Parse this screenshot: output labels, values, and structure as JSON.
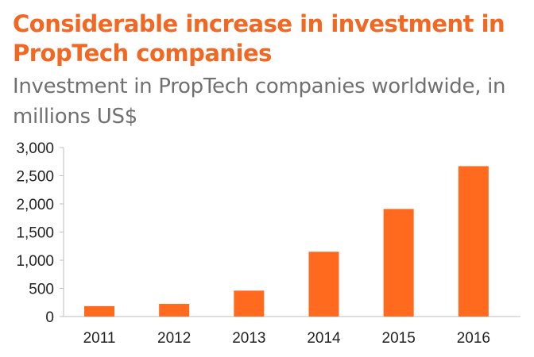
{
  "header": {
    "title": "Considerable increase in investment in PropTech companies",
    "subtitle": "Investment in PropTech companies worldwide, in millions US$"
  },
  "colors": {
    "accent": "#f26722",
    "bar": "#ff6a1f",
    "subtitle": "#707070",
    "axis": "#bfbfbf"
  },
  "chart_data": {
    "type": "bar",
    "title": "Considerable increase in investment in PropTech companies",
    "subtitle": "Investment in PropTech companies worldwide, in millions US$",
    "xlabel": "",
    "ylabel": "",
    "categories": [
      "2011",
      "2012",
      "2013",
      "2014",
      "2015",
      "2016"
    ],
    "values": [
      185,
      225,
      460,
      1150,
      1910,
      2670
    ],
    "ylim": [
      0,
      3000
    ],
    "yticks": [
      0,
      500,
      1000,
      1500,
      2000,
      2500,
      3000
    ],
    "ytick_labels": [
      "0",
      "500",
      "1,000",
      "1,500",
      "2,000",
      "2,500",
      "3,000"
    ],
    "grid": false,
    "legend": "none"
  }
}
